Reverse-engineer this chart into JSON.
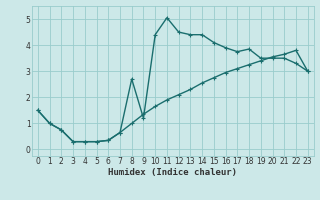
{
  "xlabel": "Humidex (Indice chaleur)",
  "ylabel": "",
  "background_color": "#cce8e8",
  "grid_color": "#99cccc",
  "line_color": "#1a6e6e",
  "xlim": [
    -0.5,
    23.5
  ],
  "ylim": [
    -0.25,
    5.5
  ],
  "xticks": [
    0,
    1,
    2,
    3,
    4,
    5,
    6,
    7,
    8,
    9,
    10,
    11,
    12,
    13,
    14,
    15,
    16,
    17,
    18,
    19,
    20,
    21,
    22,
    23
  ],
  "yticks": [
    0,
    1,
    2,
    3,
    4,
    5
  ],
  "series1_x": [
    0,
    1,
    2,
    3,
    4,
    5,
    6,
    7,
    8,
    9,
    10,
    11,
    12,
    13,
    14,
    15,
    16,
    17,
    18,
    19,
    20,
    21,
    22,
    23
  ],
  "series1_y": [
    1.5,
    1.0,
    0.75,
    0.3,
    0.3,
    0.3,
    0.35,
    0.65,
    2.7,
    1.2,
    4.4,
    5.05,
    4.5,
    4.4,
    4.4,
    4.1,
    3.9,
    3.75,
    3.85,
    3.5,
    3.5,
    3.5,
    3.3,
    3.0
  ],
  "series2_x": [
    0,
    1,
    2,
    3,
    4,
    5,
    6,
    7,
    8,
    9,
    10,
    11,
    12,
    13,
    14,
    15,
    16,
    17,
    18,
    19,
    20,
    21,
    22,
    23
  ],
  "series2_y": [
    1.5,
    1.0,
    0.75,
    0.3,
    0.3,
    0.3,
    0.35,
    0.65,
    1.0,
    1.35,
    1.65,
    1.9,
    2.1,
    2.3,
    2.55,
    2.75,
    2.95,
    3.1,
    3.25,
    3.4,
    3.55,
    3.65,
    3.8,
    3.0
  ],
  "marker_size": 2.5,
  "line_width": 1.0,
  "label_fontsize": 6.5,
  "tick_fontsize": 5.5
}
